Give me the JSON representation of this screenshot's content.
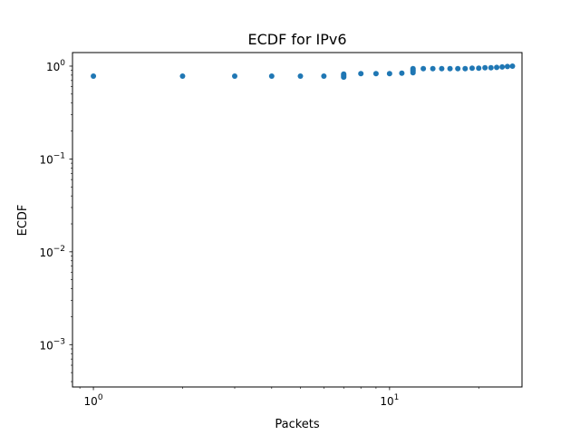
{
  "chart_data": {
    "type": "scatter",
    "title": "ECDF for IPv6",
    "xlabel": "Packets",
    "ylabel": "ECDF",
    "xscale": "log",
    "yscale": "log",
    "xlim": [
      0.85,
      28
    ],
    "ylim": [
      0.00035,
      1.4
    ],
    "grid": false,
    "color": "#1f77b4",
    "x_ticks": [
      {
        "value": 1,
        "base": "10",
        "exp": "0"
      },
      {
        "value": 10,
        "base": "10",
        "exp": "1"
      }
    ],
    "y_ticks": [
      {
        "value": 0.001,
        "base": "10",
        "exp": "−3"
      },
      {
        "value": 0.01,
        "base": "10",
        "exp": "−2"
      },
      {
        "value": 0.1,
        "base": "10",
        "exp": "−1"
      },
      {
        "value": 1,
        "base": "10",
        "exp": "0"
      }
    ],
    "points": [
      {
        "x": 1,
        "y": 0.78
      },
      {
        "x": 2,
        "y": 0.78
      },
      {
        "x": 3,
        "y": 0.78
      },
      {
        "x": 4,
        "y": 0.78
      },
      {
        "x": 5,
        "y": 0.78
      },
      {
        "x": 6,
        "y": 0.78
      },
      {
        "x": 7,
        "y": 0.76
      },
      {
        "x": 7,
        "y": 0.78
      },
      {
        "x": 7,
        "y": 0.8
      },
      {
        "x": 7,
        "y": 0.82
      },
      {
        "x": 8,
        "y": 0.83
      },
      {
        "x": 9,
        "y": 0.83
      },
      {
        "x": 10,
        "y": 0.83
      },
      {
        "x": 11,
        "y": 0.84
      },
      {
        "x": 12,
        "y": 0.85
      },
      {
        "x": 12,
        "y": 0.88
      },
      {
        "x": 12,
        "y": 0.91
      },
      {
        "x": 12,
        "y": 0.94
      },
      {
        "x": 13,
        "y": 0.94
      },
      {
        "x": 14,
        "y": 0.94
      },
      {
        "x": 15,
        "y": 0.94
      },
      {
        "x": 16,
        "y": 0.94
      },
      {
        "x": 17,
        "y": 0.94
      },
      {
        "x": 18,
        "y": 0.94
      },
      {
        "x": 19,
        "y": 0.95
      },
      {
        "x": 20,
        "y": 0.95
      },
      {
        "x": 21,
        "y": 0.96
      },
      {
        "x": 22,
        "y": 0.96
      },
      {
        "x": 23,
        "y": 0.97
      },
      {
        "x": 24,
        "y": 0.98
      },
      {
        "x": 25,
        "y": 0.99
      },
      {
        "x": 26,
        "y": 1.0
      }
    ]
  }
}
